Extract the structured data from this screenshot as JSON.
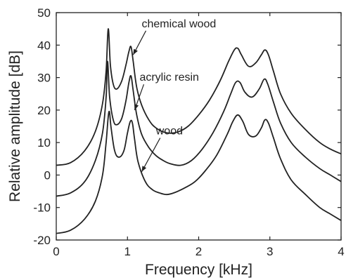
{
  "chart_data": {
    "type": "line",
    "xlabel": "Frequency [kHz]",
    "ylabel": "Relative amplitude [dB]",
    "xlim": [
      0,
      4
    ],
    "ylim": [
      -20,
      50
    ],
    "xticks": [
      0,
      1,
      2,
      3,
      4
    ],
    "yticks": [
      -20,
      -10,
      0,
      10,
      20,
      30,
      40,
      50
    ],
    "grid": false,
    "series": [
      {
        "name": "chemical wood",
        "x": [
          0.0,
          0.2,
          0.4,
          0.55,
          0.65,
          0.7,
          0.73,
          0.76,
          0.8,
          0.85,
          0.92,
          0.98,
          1.02,
          1.05,
          1.08,
          1.13,
          1.2,
          1.3,
          1.4,
          1.55,
          1.7,
          1.85,
          2.0,
          2.15,
          2.3,
          2.42,
          2.5,
          2.55,
          2.6,
          2.7,
          2.8,
          2.88,
          2.93,
          2.98,
          3.05,
          3.15,
          3.3,
          3.5,
          3.7,
          3.85,
          4.0
        ],
        "y": [
          3.0,
          3.8,
          7.5,
          13.5,
          22.0,
          32.0,
          45.0,
          34.0,
          28.0,
          26.5,
          29.0,
          34.0,
          38.0,
          39.5,
          35.0,
          27.0,
          21.5,
          17.0,
          14.5,
          13.0,
          13.2,
          15.0,
          18.5,
          23.0,
          29.0,
          35.0,
          38.5,
          39.0,
          37.0,
          33.5,
          34.5,
          37.0,
          38.5,
          37.0,
          32.0,
          25.0,
          19.0,
          14.0,
          10.0,
          8.0,
          6.5
        ]
      },
      {
        "name": "acrylic resin",
        "x": [
          0.0,
          0.2,
          0.4,
          0.55,
          0.65,
          0.7,
          0.72,
          0.75,
          0.8,
          0.85,
          0.92,
          0.98,
          1.02,
          1.05,
          1.08,
          1.13,
          1.2,
          1.3,
          1.4,
          1.5,
          1.6,
          1.75,
          1.9,
          2.05,
          2.2,
          2.35,
          2.45,
          2.52,
          2.58,
          2.65,
          2.75,
          2.85,
          2.92,
          2.97,
          3.05,
          3.15,
          3.3,
          3.5,
          3.7,
          3.85,
          4.0
        ],
        "y": [
          -6.5,
          -5.5,
          -2.0,
          4.5,
          13.0,
          24.0,
          35.0,
          24.0,
          17.0,
          15.5,
          17.5,
          23.0,
          28.5,
          30.5,
          26.0,
          18.5,
          12.5,
          8.5,
          6.0,
          4.5,
          3.5,
          3.0,
          4.5,
          8.0,
          13.0,
          19.5,
          25.0,
          28.5,
          28.5,
          25.5,
          24.0,
          26.5,
          29.5,
          28.0,
          22.5,
          16.0,
          10.0,
          5.5,
          2.0,
          0.0,
          -2.0
        ]
      },
      {
        "name": "wood",
        "x": [
          0.0,
          0.2,
          0.4,
          0.55,
          0.65,
          0.7,
          0.74,
          0.77,
          0.82,
          0.88,
          0.95,
          1.0,
          1.04,
          1.07,
          1.1,
          1.15,
          1.25,
          1.35,
          1.45,
          1.55,
          1.65,
          1.8,
          1.95,
          2.1,
          2.25,
          2.4,
          2.48,
          2.55,
          2.62,
          2.7,
          2.8,
          2.88,
          2.93,
          2.98,
          3.05,
          3.15,
          3.3,
          3.5,
          3.7,
          3.85,
          4.0
        ],
        "y": [
          -18.0,
          -17.0,
          -13.5,
          -8.0,
          0.0,
          10.0,
          19.5,
          14.5,
          7.5,
          5.5,
          7.5,
          13.0,
          16.5,
          16.0,
          11.0,
          4.0,
          -2.0,
          -4.5,
          -5.5,
          -6.0,
          -5.5,
          -4.0,
          -2.0,
          1.5,
          6.0,
          12.5,
          16.5,
          18.5,
          16.5,
          12.5,
          12.0,
          14.5,
          17.0,
          16.0,
          11.5,
          5.0,
          -1.5,
          -6.0,
          -10.0,
          -12.0,
          -14.0
        ]
      }
    ],
    "annotations": [
      {
        "text": "chemical wood",
        "x": 1.2,
        "y": 45.5,
        "arrow_to": [
          1.08,
          37.0
        ]
      },
      {
        "text": "acrylic resin",
        "x": 1.17,
        "y": 29.0,
        "arrow_to": [
          1.1,
          20.0
        ]
      },
      {
        "text": "wood",
        "x": 1.4,
        "y": 12.5,
        "arrow_to": [
          1.2,
          1.0
        ]
      }
    ],
    "colors": {
      "line": "#222222",
      "background": "#ffffff"
    }
  }
}
